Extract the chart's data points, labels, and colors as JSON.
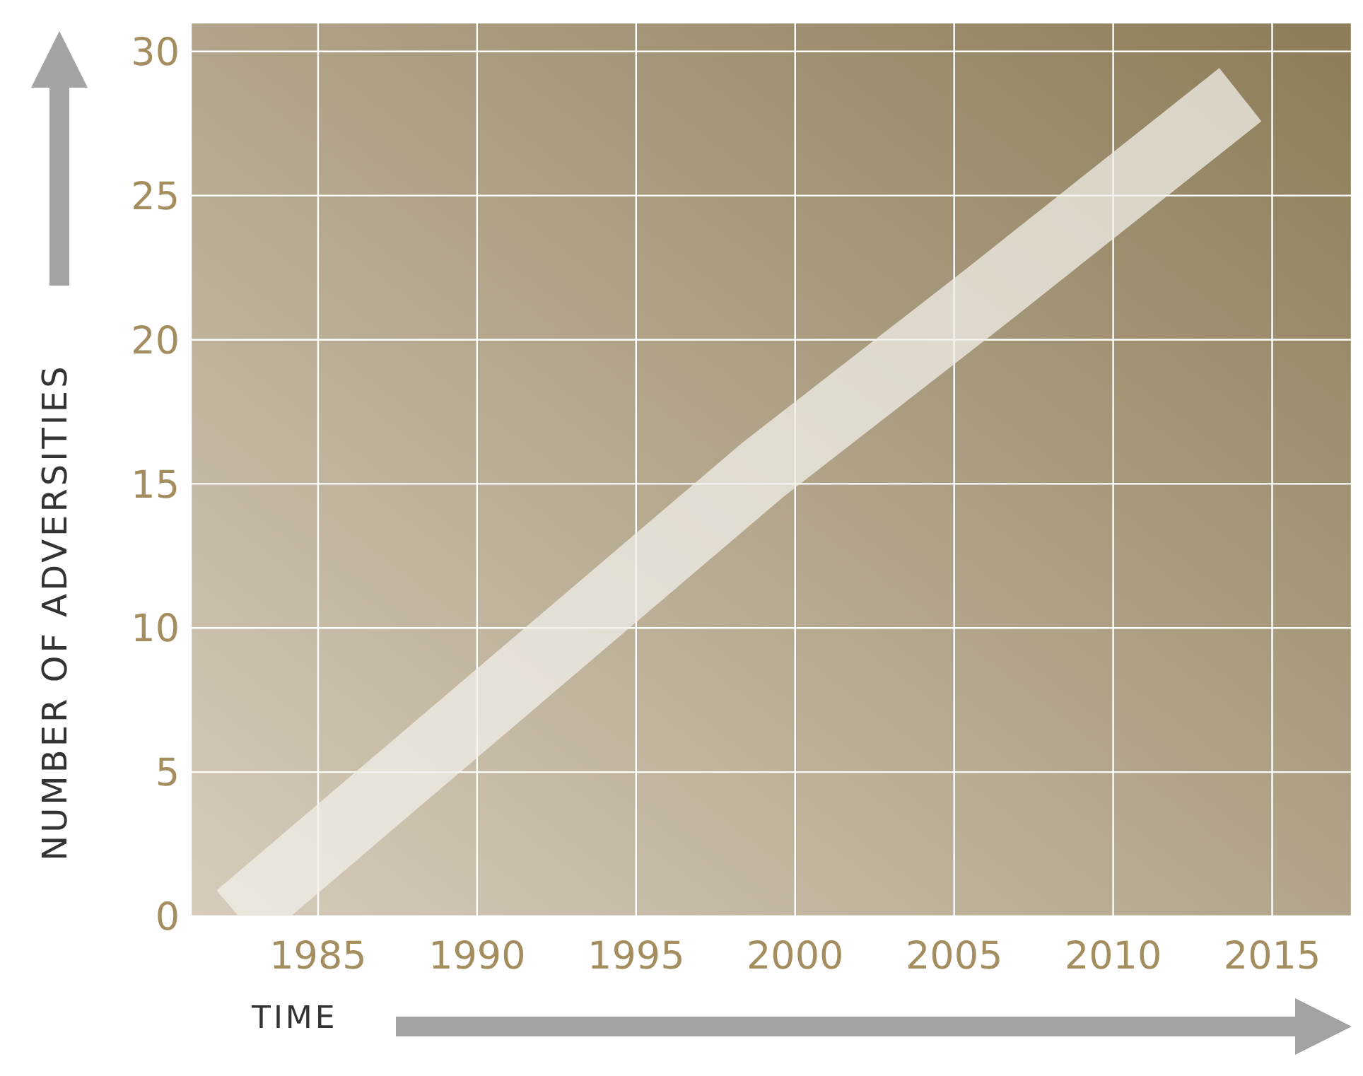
{
  "chart_data": {
    "type": "line",
    "xlabel": "TIME",
    "ylabel": "NUMBER OF ADVERSITIES",
    "x": [
      1982.5,
      1999,
      2006,
      2014
    ],
    "series": [
      {
        "color": "#f2efe8",
        "values": [
          0,
          15.5,
          21.5,
          28.5
        ]
      }
    ],
    "xlim": [
      1981,
      2017.5
    ],
    "xticks": [
      1985,
      1990,
      1995,
      2000,
      2005,
      2010,
      2015
    ],
    "ylim": [
      0,
      31
    ],
    "yticks": [
      0,
      5,
      10,
      15,
      20,
      25,
      30
    ],
    "grid": true,
    "legend": false,
    "marker": "none",
    "line_style": "solid"
  }
}
